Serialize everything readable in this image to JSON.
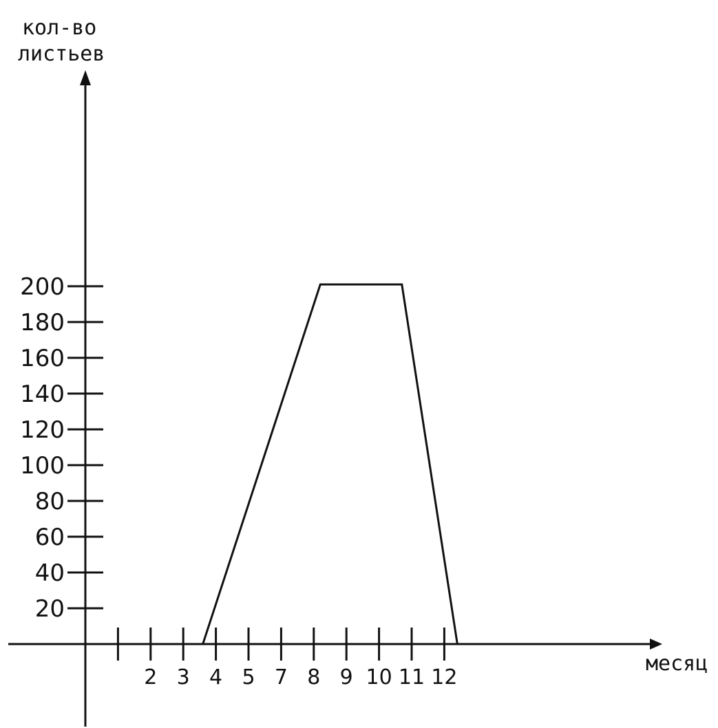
{
  "chart_data": {
    "type": "line",
    "ylabel_lines": [
      "кол-во",
      "листьев"
    ],
    "xlabel": "месяц",
    "yticks": [
      20,
      40,
      60,
      80,
      100,
      120,
      140,
      160,
      180,
      200
    ],
    "xtick_labels": [
      "",
      "2",
      "3",
      "4",
      "5",
      "7",
      "8",
      "9",
      "10",
      "11",
      "12"
    ],
    "xlim": [
      0,
      12.5
    ],
    "ylim": [
      0,
      200
    ],
    "series": [
      {
        "x": [
          3.6,
          7.2,
          9.7,
          11.4
        ],
        "y": [
          0,
          201,
          201,
          0
        ]
      }
    ],
    "colors": {
      "line": "#111111",
      "axis": "#111111"
    }
  }
}
